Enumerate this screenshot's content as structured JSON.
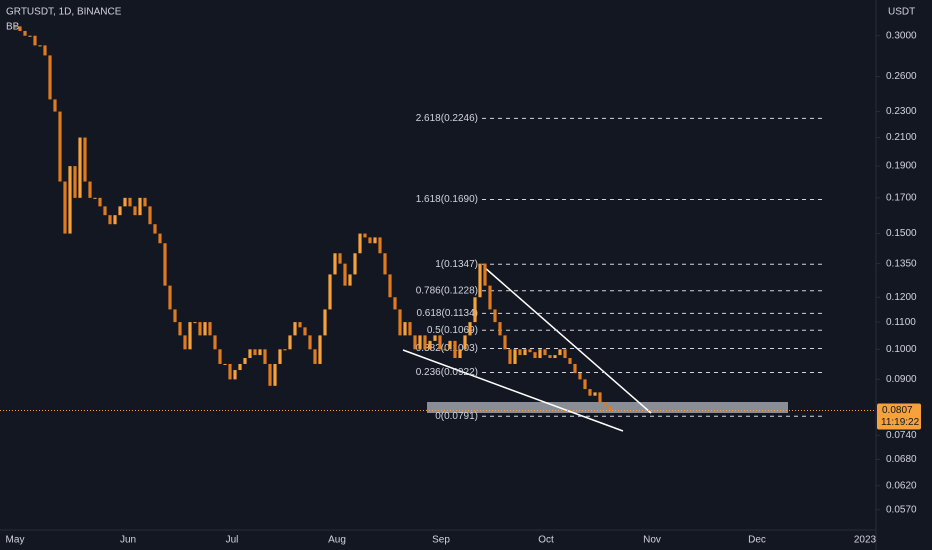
{
  "chart_data": {
    "type": "candlestick",
    "title": "GRTUSDT, 1D, BINANCE",
    "indicator": "BB",
    "y_axis_label": "USDT",
    "log_scale": true,
    "ylim": [
      0.0531,
      0.34
    ],
    "yticks": [
      {
        "value": 0.3,
        "label": "0.3000"
      },
      {
        "value": 0.26,
        "label": "0.2600"
      },
      {
        "value": 0.23,
        "label": "0.2300"
      },
      {
        "value": 0.21,
        "label": "0.2100"
      },
      {
        "value": 0.19,
        "label": "0.1900"
      },
      {
        "value": 0.17,
        "label": "0.1700"
      },
      {
        "value": 0.15,
        "label": "0.1500"
      },
      {
        "value": 0.135,
        "label": "0.1350"
      },
      {
        "value": 0.12,
        "label": "0.1200"
      },
      {
        "value": 0.11,
        "label": "0.1100"
      },
      {
        "value": 0.1,
        "label": "0.1000"
      },
      {
        "value": 0.09,
        "label": "0.0900"
      },
      {
        "value": 0.074,
        "label": "0.0740"
      },
      {
        "value": 0.068,
        "label": "0.0680"
      },
      {
        "value": 0.062,
        "label": "0.0620"
      },
      {
        "value": 0.057,
        "label": "0.0570"
      }
    ],
    "x_labels": [
      "May",
      "Jun",
      "Jul",
      "Aug",
      "Sep",
      "Oct",
      "Nov",
      "Dec",
      "2023"
    ],
    "close": [
      0.31,
      0.305,
      0.3,
      0.3,
      0.29,
      0.29,
      0.28,
      0.24,
      0.23,
      0.18,
      0.15,
      0.19,
      0.17,
      0.21,
      0.18,
      0.17,
      0.17,
      0.165,
      0.16,
      0.155,
      0.16,
      0.165,
      0.17,
      0.165,
      0.16,
      0.17,
      0.165,
      0.155,
      0.15,
      0.145,
      0.125,
      0.115,
      0.11,
      0.105,
      0.1,
      0.11,
      0.11,
      0.105,
      0.11,
      0.105,
      0.1,
      0.095,
      0.095,
      0.09,
      0.093,
      0.095,
      0.097,
      0.1,
      0.098,
      0.1,
      0.095,
      0.088,
      0.095,
      0.1,
      0.1,
      0.105,
      0.11,
      0.108,
      0.105,
      0.1,
      0.095,
      0.105,
      0.115,
      0.13,
      0.14,
      0.135,
      0.125,
      0.13,
      0.14,
      0.15,
      0.148,
      0.145,
      0.148,
      0.14,
      0.13,
      0.12,
      0.115,
      0.105,
      0.11,
      0.105,
      0.1,
      0.105,
      0.1,
      0.103,
      0.105,
      0.1,
      0.1,
      0.103,
      0.097,
      0.1,
      0.105,
      0.11,
      0.12,
      0.135,
      0.125,
      0.115,
      0.11,
      0.105,
      0.1,
      0.095,
      0.1,
      0.098,
      0.1,
      0.099,
      0.097,
      0.1,
      0.098,
      0.097,
      0.098,
      0.1,
      0.097,
      0.095,
      0.092,
      0.09,
      0.087,
      0.085,
      0.086,
      0.083,
      0.082,
      0.0807
    ],
    "up_color": "#f7a13b",
    "down_color": "#e07b1f",
    "fib_levels": [
      {
        "label": "2.618(0.2246)",
        "value": 0.2246
      },
      {
        "label": "1.618(0.1690)",
        "value": 0.169
      },
      {
        "label": "1(0.1347)",
        "value": 0.1347
      },
      {
        "label": "0.786(0.1228)",
        "value": 0.1228
      },
      {
        "label": "0.618(0.1134)",
        "value": 0.1134
      },
      {
        "label": "0.5(0.1069)",
        "value": 0.1069
      },
      {
        "label": "0.382(0.1003)",
        "value": 0.1003
      },
      {
        "label": "0.236(0.0922)",
        "value": 0.0922
      },
      {
        "label": "0(0.0791)",
        "value": 0.0791
      }
    ],
    "last_price": {
      "value": 0.0807,
      "label": "0.0807",
      "countdown": "11:19:22"
    }
  }
}
